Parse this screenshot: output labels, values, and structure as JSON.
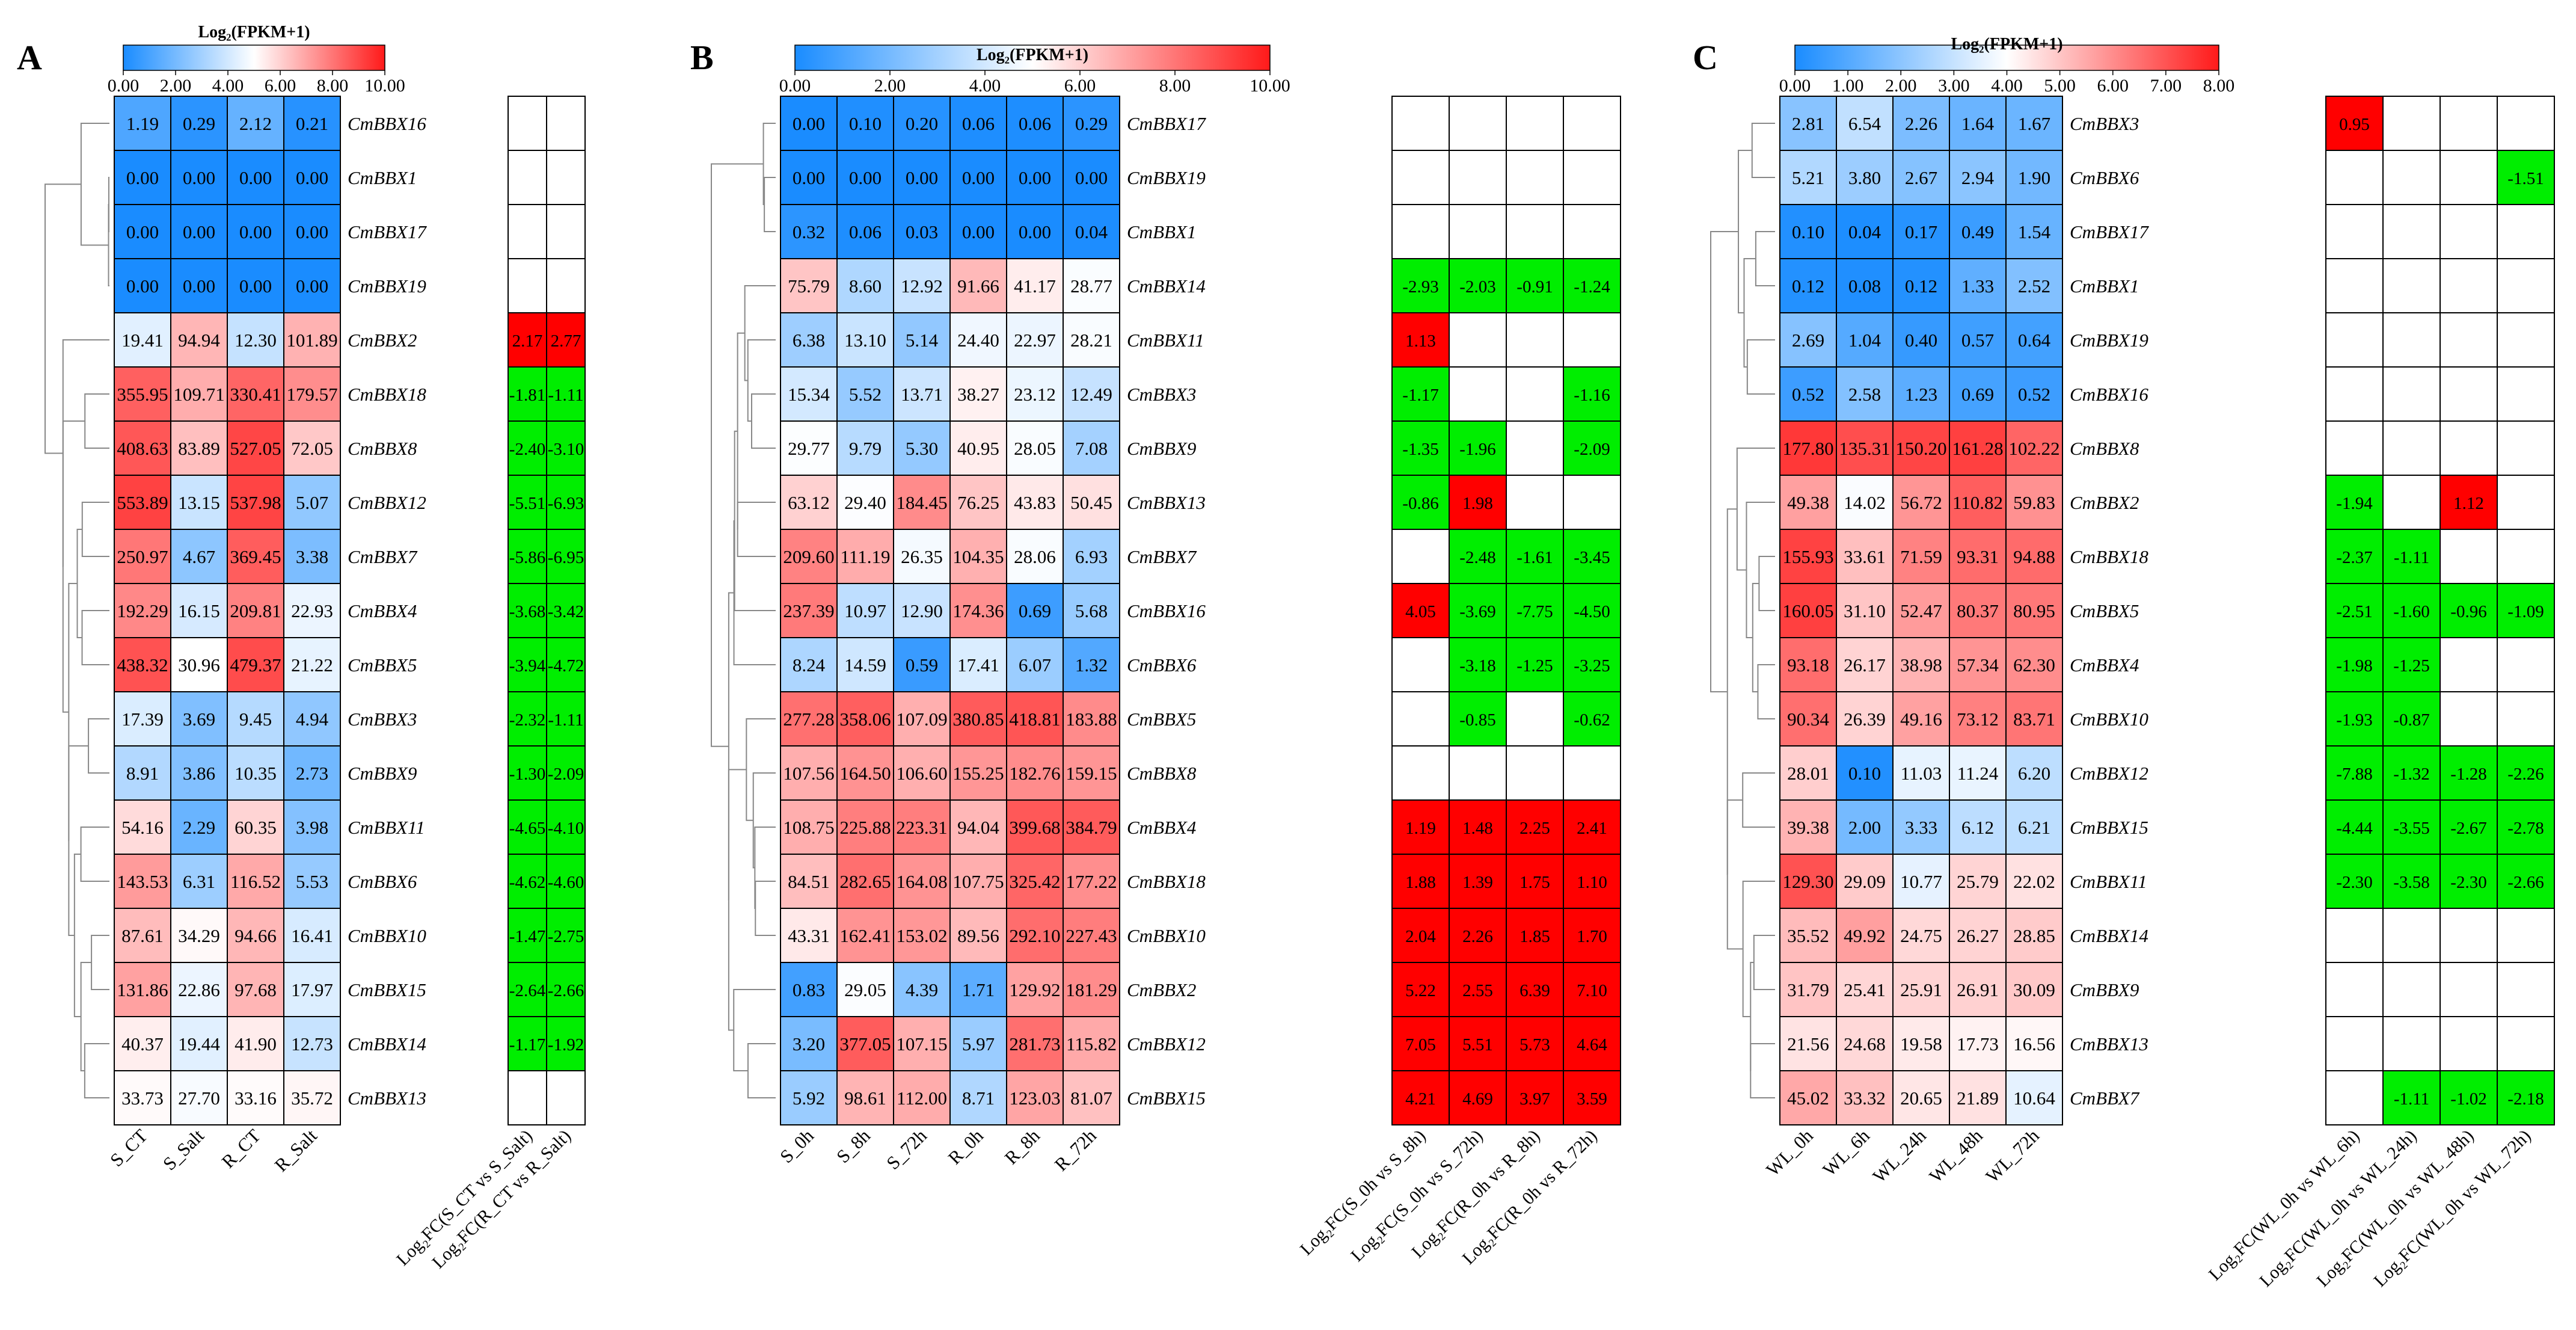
{
  "chart_data": [
    {
      "type": "heatmap",
      "panel_label": "A",
      "color_scale_title": "Log₂(FPKM+1)",
      "color_scale_ticks": [
        "0.00",
        "2.00",
        "4.00",
        "6.00",
        "8.00",
        "10.00"
      ],
      "color_scale_range": [
        0,
        10
      ],
      "columns": [
        "S_CT",
        "S_Salt",
        "R_CT",
        "R_Salt"
      ],
      "fc_columns": [
        "Log₂FC(S_CT vs S_Salt)",
        "Log₂FC(R_CT vs R_Salt)"
      ],
      "rows": [
        {
          "gene": "CmBBX16",
          "values": [
            "1.19",
            "0.29",
            "2.12",
            "0.21"
          ],
          "fc": [
            "",
            ""
          ]
        },
        {
          "gene": "CmBBX1",
          "values": [
            "0.00",
            "0.00",
            "0.00",
            "0.00"
          ],
          "fc": [
            "",
            ""
          ]
        },
        {
          "gene": "CmBBX17",
          "values": [
            "0.00",
            "0.00",
            "0.00",
            "0.00"
          ],
          "fc": [
            "",
            ""
          ]
        },
        {
          "gene": "CmBBX19",
          "values": [
            "0.00",
            "0.00",
            "0.00",
            "0.00"
          ],
          "fc": [
            "",
            ""
          ]
        },
        {
          "gene": "CmBBX2",
          "values": [
            "19.41",
            "94.94",
            "12.30",
            "101.89"
          ],
          "fc": [
            "2.17",
            "2.77"
          ]
        },
        {
          "gene": "CmBBX18",
          "values": [
            "355.95",
            "109.71",
            "330.41",
            "179.57"
          ],
          "fc": [
            "-1.81",
            "-1.11"
          ]
        },
        {
          "gene": "CmBBX8",
          "values": [
            "408.63",
            "83.89",
            "527.05",
            "72.05"
          ],
          "fc": [
            "-2.40",
            "-3.10"
          ]
        },
        {
          "gene": "CmBBX12",
          "values": [
            "553.89",
            "13.15",
            "537.98",
            "5.07"
          ],
          "fc": [
            "-5.51",
            "-6.93"
          ]
        },
        {
          "gene": "CmBBX7",
          "values": [
            "250.97",
            "4.67",
            "369.45",
            "3.38"
          ],
          "fc": [
            "-5.86",
            "-6.95"
          ]
        },
        {
          "gene": "CmBBX4",
          "values": [
            "192.29",
            "16.15",
            "209.81",
            "22.93"
          ],
          "fc": [
            "-3.68",
            "-3.42"
          ]
        },
        {
          "gene": "CmBBX5",
          "values": [
            "438.32",
            "30.96",
            "479.37",
            "21.22"
          ],
          "fc": [
            "-3.94",
            "-4.72"
          ]
        },
        {
          "gene": "CmBBX3",
          "values": [
            "17.39",
            "3.69",
            "9.45",
            "4.94"
          ],
          "fc": [
            "-2.32",
            "-1.11"
          ]
        },
        {
          "gene": "CmBBX9",
          "values": [
            "8.91",
            "3.86",
            "10.35",
            "2.73"
          ],
          "fc": [
            "-1.30",
            "-2.09"
          ]
        },
        {
          "gene": "CmBBX11",
          "values": [
            "54.16",
            "2.29",
            "60.35",
            "3.98"
          ],
          "fc": [
            "-4.65",
            "-4.10"
          ]
        },
        {
          "gene": "CmBBX6",
          "values": [
            "143.53",
            "6.31",
            "116.52",
            "5.53"
          ],
          "fc": [
            "-4.62",
            "-4.60"
          ]
        },
        {
          "gene": "CmBBX10",
          "values": [
            "87.61",
            "34.29",
            "94.66",
            "16.41"
          ],
          "fc": [
            "-1.47",
            "-2.75"
          ]
        },
        {
          "gene": "CmBBX15",
          "values": [
            "131.86",
            "22.86",
            "97.68",
            "17.97"
          ],
          "fc": [
            "-2.64",
            "-2.66"
          ]
        },
        {
          "gene": "CmBBX14",
          "values": [
            "40.37",
            "19.44",
            "41.90",
            "12.73"
          ],
          "fc": [
            "-1.17",
            "-1.92"
          ]
        },
        {
          "gene": "CmBBX13",
          "values": [
            "33.73",
            "27.70",
            "33.16",
            "35.72"
          ],
          "fc": [
            "",
            ""
          ]
        }
      ]
    },
    {
      "type": "heatmap",
      "panel_label": "B",
      "color_scale_title": "Log₂(FPKM+1)",
      "color_scale_ticks": [
        "0.00",
        "2.00",
        "4.00",
        "6.00",
        "8.00",
        "10.00"
      ],
      "color_scale_range": [
        0,
        10
      ],
      "columns": [
        "S_0h",
        "S_8h",
        "S_72h",
        "R_0h",
        "R_8h",
        "R_72h"
      ],
      "fc_columns": [
        "Log₂FC(S_0h vs S_8h)",
        "Log₂FC(S_0h vs S_72h)",
        "Log₂FC(R_0h vs R_8h)",
        "Log₂FC(R_0h vs R_72h)"
      ],
      "rows": [
        {
          "gene": "CmBBX17",
          "values": [
            "0.00",
            "0.10",
            "0.20",
            "0.06",
            "0.06",
            "0.29"
          ],
          "fc": [
            "",
            "",
            "",
            ""
          ]
        },
        {
          "gene": "CmBBX19",
          "values": [
            "0.00",
            "0.00",
            "0.00",
            "0.00",
            "0.00",
            "0.00"
          ],
          "fc": [
            "",
            "",
            "",
            ""
          ]
        },
        {
          "gene": "CmBBX1",
          "values": [
            "0.32",
            "0.06",
            "0.03",
            "0.00",
            "0.00",
            "0.04"
          ],
          "fc": [
            "",
            "",
            "",
            ""
          ]
        },
        {
          "gene": "CmBBX14",
          "values": [
            "75.79",
            "8.60",
            "12.92",
            "91.66",
            "41.17",
            "28.77"
          ],
          "fc": [
            "-2.93",
            "-2.03",
            "-0.91",
            "-1.24"
          ]
        },
        {
          "gene": "CmBBX11",
          "values": [
            "6.38",
            "13.10",
            "5.14",
            "24.40",
            "22.97",
            "28.21"
          ],
          "fc": [
            "1.13",
            "",
            "",
            ""
          ]
        },
        {
          "gene": "CmBBX3",
          "values": [
            "15.34",
            "5.52",
            "13.71",
            "38.27",
            "23.12",
            "12.49"
          ],
          "fc": [
            "-1.17",
            "",
            "",
            "-1.16"
          ]
        },
        {
          "gene": "CmBBX9",
          "values": [
            "29.77",
            "9.79",
            "5.30",
            "40.95",
            "28.05",
            "7.08"
          ],
          "fc": [
            "-1.35",
            "-1.96",
            "",
            "-2.09"
          ]
        },
        {
          "gene": "CmBBX13",
          "values": [
            "63.12",
            "29.40",
            "184.45",
            "76.25",
            "43.83",
            "50.45"
          ],
          "fc": [
            "-0.86",
            "1.98",
            "",
            ""
          ]
        },
        {
          "gene": "CmBBX7",
          "values": [
            "209.60",
            "111.19",
            "26.35",
            "104.35",
            "28.06",
            "6.93"
          ],
          "fc": [
            "",
            "-2.48",
            "-1.61",
            "-3.45"
          ]
        },
        {
          "gene": "CmBBX16",
          "values": [
            "237.39",
            "10.97",
            "12.90",
            "174.36",
            "0.69",
            "5.68"
          ],
          "fc": [
            "4.05",
            "-3.69",
            "-7.75",
            "-4.50"
          ]
        },
        {
          "gene": "CmBBX6",
          "values": [
            "8.24",
            "14.59",
            "0.59",
            "17.41",
            "6.07",
            "1.32"
          ],
          "fc": [
            "",
            "-3.18",
            "-1.25",
            "-3.25"
          ]
        },
        {
          "gene": "CmBBX5",
          "values": [
            "277.28",
            "358.06",
            "107.09",
            "380.85",
            "418.81",
            "183.88"
          ],
          "fc": [
            "",
            "-0.85",
            "",
            "-0.62"
          ]
        },
        {
          "gene": "CmBBX8",
          "values": [
            "107.56",
            "164.50",
            "106.60",
            "155.25",
            "182.76",
            "159.15"
          ],
          "fc": [
            "",
            "",
            "",
            ""
          ]
        },
        {
          "gene": "CmBBX4",
          "values": [
            "108.75",
            "225.88",
            "223.31",
            "94.04",
            "399.68",
            "384.79"
          ],
          "fc": [
            "1.19",
            "1.48",
            "2.25",
            "2.41"
          ]
        },
        {
          "gene": "CmBBX18",
          "values": [
            "84.51",
            "282.65",
            "164.08",
            "107.75",
            "325.42",
            "177.22"
          ],
          "fc": [
            "1.88",
            "1.39",
            "1.75",
            "1.10"
          ]
        },
        {
          "gene": "CmBBX10",
          "values": [
            "43.31",
            "162.41",
            "153.02",
            "89.56",
            "292.10",
            "227.43"
          ],
          "fc": [
            "2.04",
            "2.26",
            "1.85",
            "1.70"
          ]
        },
        {
          "gene": "CmBBX2",
          "values": [
            "0.83",
            "29.05",
            "4.39",
            "1.71",
            "129.92",
            "181.29"
          ],
          "fc": [
            "5.22",
            "2.55",
            "6.39",
            "7.10"
          ]
        },
        {
          "gene": "CmBBX12",
          "values": [
            "3.20",
            "377.05",
            "107.15",
            "5.97",
            "281.73",
            "115.82"
          ],
          "fc": [
            "7.05",
            "5.51",
            "5.73",
            "4.64"
          ]
        },
        {
          "gene": "CmBBX15",
          "values": [
            "5.92",
            "98.61",
            "112.00",
            "8.71",
            "123.03",
            "81.07"
          ],
          "fc": [
            "4.21",
            "4.69",
            "3.97",
            "3.59"
          ]
        }
      ]
    },
    {
      "type": "heatmap",
      "panel_label": "C",
      "color_scale_title": "Log₂(FPKM+1)",
      "color_scale_ticks": [
        "0.00",
        "1.00",
        "2.00",
        "3.00",
        "4.00",
        "5.00",
        "6.00",
        "7.00",
        "8.00"
      ],
      "color_scale_range": [
        0,
        8
      ],
      "columns": [
        "WL_0h",
        "WL_6h",
        "WL_24h",
        "WL_48h",
        "WL_72h"
      ],
      "fc_columns": [
        "Log₂FC(WL_0h vs WL_6h)",
        "Log₂FC(WL_0h vs WL_24h)",
        "Log₂FC(WL_0h vs WL_48h)",
        "Log₂FC(WL_0h vs WL_72h)"
      ],
      "rows": [
        {
          "gene": "CmBBX3",
          "values": [
            "2.81",
            "6.54",
            "2.26",
            "1.64",
            "1.67"
          ],
          "fc": [
            "0.95",
            "",
            "",
            ""
          ]
        },
        {
          "gene": "CmBBX6",
          "values": [
            "5.21",
            "3.80",
            "2.67",
            "2.94",
            "1.90"
          ],
          "fc": [
            "",
            "",
            "",
            "-1.51"
          ]
        },
        {
          "gene": "CmBBX17",
          "values": [
            "0.10",
            "0.04",
            "0.17",
            "0.49",
            "1.54"
          ],
          "fc": [
            "",
            "",
            "",
            ""
          ]
        },
        {
          "gene": "CmBBX1",
          "values": [
            "0.12",
            "0.08",
            "0.12",
            "1.33",
            "2.52"
          ],
          "fc": [
            "",
            "",
            "",
            ""
          ]
        },
        {
          "gene": "CmBBX19",
          "values": [
            "2.69",
            "1.04",
            "0.40",
            "0.57",
            "0.64"
          ],
          "fc": [
            "",
            "",
            "",
            ""
          ]
        },
        {
          "gene": "CmBBX16",
          "values": [
            "0.52",
            "2.58",
            "1.23",
            "0.69",
            "0.52"
          ],
          "fc": [
            "",
            "",
            "",
            ""
          ]
        },
        {
          "gene": "CmBBX8",
          "values": [
            "177.80",
            "135.31",
            "150.20",
            "161.28",
            "102.22"
          ],
          "fc": [
            "",
            "",
            "",
            ""
          ]
        },
        {
          "gene": "CmBBX2",
          "values": [
            "49.38",
            "14.02",
            "56.72",
            "110.82",
            "59.83"
          ],
          "fc": [
            "-1.94",
            "",
            "1.12",
            ""
          ]
        },
        {
          "gene": "CmBBX18",
          "values": [
            "155.93",
            "33.61",
            "71.59",
            "93.31",
            "94.88"
          ],
          "fc": [
            "-2.37",
            "-1.11",
            "",
            ""
          ]
        },
        {
          "gene": "CmBBX5",
          "values": [
            "160.05",
            "31.10",
            "52.47",
            "80.37",
            "80.95"
          ],
          "fc": [
            "-2.51",
            "-1.60",
            "-0.96",
            "-1.09"
          ]
        },
        {
          "gene": "CmBBX4",
          "values": [
            "93.18",
            "26.17",
            "38.98",
            "57.34",
            "62.30"
          ],
          "fc": [
            "-1.98",
            "-1.25",
            "",
            ""
          ]
        },
        {
          "gene": "CmBBX10",
          "values": [
            "90.34",
            "26.39",
            "49.16",
            "73.12",
            "83.71"
          ],
          "fc": [
            "-1.93",
            "-0.87",
            "",
            ""
          ]
        },
        {
          "gene": "CmBBX12",
          "values": [
            "28.01",
            "0.10",
            "11.03",
            "11.24",
            "6.20"
          ],
          "fc": [
            "-7.88",
            "-1.32",
            "-1.28",
            "-2.26"
          ]
        },
        {
          "gene": "CmBBX15",
          "values": [
            "39.38",
            "2.00",
            "3.33",
            "6.12",
            "6.21"
          ],
          "fc": [
            "-4.44",
            "-3.55",
            "-2.67",
            "-2.78"
          ]
        },
        {
          "gene": "CmBBX11",
          "values": [
            "129.30",
            "29.09",
            "10.77",
            "25.79",
            "22.02"
          ],
          "fc": [
            "-2.30",
            "-3.58",
            "-2.30",
            "-2.66"
          ]
        },
        {
          "gene": "CmBBX14",
          "values": [
            "35.52",
            "49.92",
            "24.75",
            "26.27",
            "28.85"
          ],
          "fc": [
            "",
            "",
            "",
            ""
          ]
        },
        {
          "gene": "CmBBX9",
          "values": [
            "31.79",
            "25.41",
            "25.91",
            "26.91",
            "30.09"
          ],
          "fc": [
            "",
            "",
            "",
            ""
          ]
        },
        {
          "gene": "CmBBX13",
          "values": [
            "21.56",
            "24.68",
            "19.58",
            "17.73",
            "16.56"
          ],
          "fc": [
            "",
            "",
            "",
            ""
          ]
        },
        {
          "gene": "CmBBX7",
          "values": [
            "45.02",
            "33.32",
            "20.65",
            "21.89",
            "10.64"
          ],
          "fc": [
            "",
            "-1.11",
            "-1.02",
            "-2.18"
          ]
        }
      ]
    }
  ],
  "colors": {
    "low": "#1a8cff",
    "mid": "#ffffff",
    "high": "#ff1a1a",
    "fc_up": "#ff0000",
    "fc_down": "#00ee00",
    "grid": "#000000"
  }
}
